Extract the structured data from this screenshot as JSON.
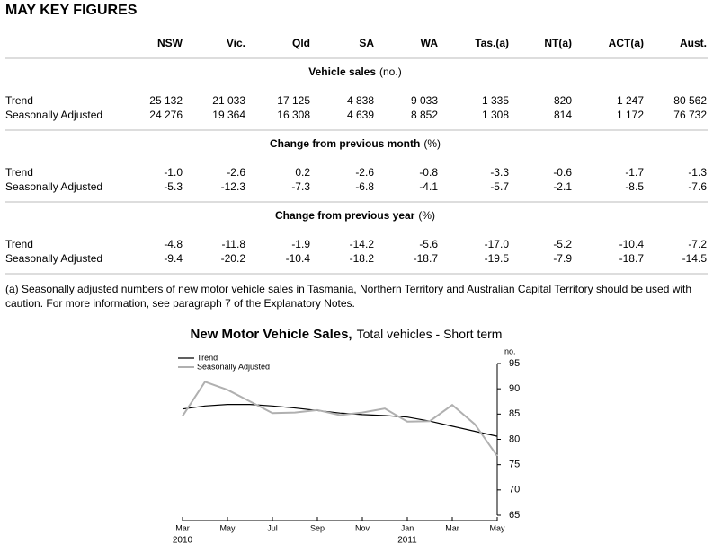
{
  "header": {
    "title": "MAY KEY FIGURES"
  },
  "table": {
    "columns": [
      "NSW",
      "Vic.",
      "Qld",
      "SA",
      "WA",
      "Tas.(a)",
      "NT(a)",
      "ACT(a)",
      "Aust."
    ],
    "sections": [
      {
        "title": "Vehicle sales",
        "unit": "(no.)",
        "rows": [
          {
            "label": "Trend",
            "values": [
              "25 132",
              "21 033",
              "17 125",
              "4 838",
              "9 033",
              "1 335",
              "820",
              "1 247",
              "80 562"
            ]
          },
          {
            "label": "Seasonally Adjusted",
            "values": [
              "24 276",
              "19 364",
              "16 308",
              "4 639",
              "8 852",
              "1 308",
              "814",
              "1 172",
              "76 732"
            ]
          }
        ]
      },
      {
        "title": "Change from previous month",
        "unit": "(%)",
        "rows": [
          {
            "label": "Trend",
            "values": [
              "-1.0",
              "-2.6",
              "0.2",
              "-2.6",
              "-0.8",
              "-3.3",
              "-0.6",
              "-1.7",
              "-1.3"
            ]
          },
          {
            "label": "Seasonally Adjusted",
            "values": [
              "-5.3",
              "-12.3",
              "-7.3",
              "-6.8",
              "-4.1",
              "-5.7",
              "-2.1",
              "-8.5",
              "-7.6"
            ]
          }
        ]
      },
      {
        "title": "Change from previous year",
        "unit": "(%)",
        "rows": [
          {
            "label": "Trend",
            "values": [
              "-4.8",
              "-11.8",
              "-1.9",
              "-14.2",
              "-5.6",
              "-17.0",
              "-5.2",
              "-10.4",
              "-7.2"
            ]
          },
          {
            "label": "Seasonally Adjusted",
            "values": [
              "-9.4",
              "-20.2",
              "-10.4",
              "-18.2",
              "-18.7",
              "-19.5",
              "-7.9",
              "-18.7",
              "-14.5"
            ]
          }
        ]
      }
    ],
    "footnote": "(a) Seasonally adjusted numbers of new motor vehicle sales in Tasmania, Northern Territory and Australian Capital Territory should be used with caution. For more information, see paragraph 7 of the Explanatory Notes."
  },
  "chart_data": {
    "type": "line",
    "title": "New Motor Vehicle Sales,",
    "subtitle": "Total vehicles - Short term",
    "y_axis_label": "no.",
    "categories": [
      "Mar",
      null,
      "May",
      null,
      "Jul",
      null,
      "Sep",
      null,
      "Nov",
      null,
      "Jan",
      null,
      "Mar",
      null,
      "May"
    ],
    "years": [
      "2010",
      null,
      null,
      null,
      null,
      null,
      null,
      null,
      null,
      null,
      "2011",
      null,
      null,
      null,
      null
    ],
    "series": [
      {
        "name": "Trend",
        "color": "#000000",
        "values": [
          86.0,
          86.6,
          86.9,
          86.9,
          86.6,
          86.2,
          85.7,
          85.2,
          84.9,
          84.7,
          84.4,
          83.6,
          82.6,
          81.6,
          80.6
        ]
      },
      {
        "name": "Seasonally Adjusted",
        "color": "#b0b0b0",
        "values": [
          84.6,
          91.4,
          89.8,
          87.5,
          85.2,
          85.3,
          85.8,
          84.8,
          85.3,
          86.1,
          83.5,
          83.6,
          86.8,
          83.0,
          76.7
        ]
      }
    ],
    "ylim": [
      65,
      95
    ],
    "yticks": [
      65,
      70,
      75,
      80,
      85,
      90,
      95
    ]
  }
}
